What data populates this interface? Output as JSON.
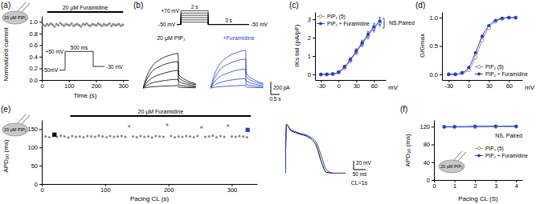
{
  "chart_data": [
    {
      "panel_label": "(a)",
      "type": "scatter",
      "cell_label": "20 µM PIP₂",
      "treatment": {
        "label": "20 µM Furamidine",
        "start": 20,
        "end": 300
      },
      "x_label": "Time (s)",
      "y_label": "Normalized current",
      "x": [
        5,
        12,
        19,
        26,
        33,
        40,
        47,
        54,
        61,
        68,
        75,
        82,
        89,
        96,
        103,
        110,
        117,
        124,
        131,
        138,
        145,
        152,
        159,
        166,
        173,
        180,
        187,
        194,
        201,
        208,
        215,
        222,
        229,
        236,
        243,
        250,
        257,
        264,
        271,
        278,
        285,
        292,
        299
      ],
      "values": [
        0.95,
        0.93,
        0.96,
        0.94,
        0.97,
        0.95,
        0.92,
        0.96,
        0.94,
        0.98,
        0.95,
        0.93,
        0.96,
        0.95,
        0.94,
        0.97,
        0.93,
        0.95,
        0.96,
        0.94,
        0.92,
        0.96,
        0.95,
        0.97,
        0.94,
        0.93,
        0.96,
        0.95,
        0.94,
        0.97,
        0.95,
        0.93,
        0.96,
        0.94,
        0.95,
        0.97,
        0.93,
        0.96,
        0.94,
        0.95,
        0.96,
        0.93,
        0.95
      ],
      "color": "#8c8c8c",
      "marker": "circle",
      "xlim": [
        0,
        320
      ],
      "ylim": [
        0,
        1.1
      ],
      "xticks": [
        0,
        100,
        200,
        300
      ],
      "yticks": [
        {
          "value": 0,
          "label": "0.0"
        },
        0.2,
        0.4,
        0.6,
        0.8,
        {
          "value": 1,
          "label": "1.0"
        }
      ],
      "protocol": {
        "x": [
          0,
          100,
          100,
          600,
          600,
          800
        ],
        "values": [
          -50,
          -50,
          50,
          50,
          -30,
          -30
        ],
        "xlim": [
          0,
          800
        ],
        "ylim": [
          -60,
          60
        ],
        "labels": [
          "+50 mV",
          "500 ms",
          "-50mV",
          "-30 mV"
        ]
      }
    },
    {
      "panel_label": "(b)",
      "type": "traces",
      "tick_labels": false,
      "protocol": {
        "x": [
          0,
          0.3,
          2.3,
          5.3
        ],
        "holding": -50,
        "steps": [
          70,
          50,
          30,
          10,
          -10,
          -30
        ],
        "xlim": [
          0,
          5.3
        ],
        "ylim": [
          -60,
          80
        ],
        "labels": [
          "+70 mV",
          "-50 mV",
          "-50 mV",
          "2 s",
          "3 s"
        ]
      },
      "x": [
        0,
        0.2,
        0.5,
        1,
        1.5,
        2,
        2.02,
        2.5,
        3
      ],
      "xlim": [
        0,
        3.2
      ],
      "ylim": [
        -100,
        700
      ],
      "groups": [
        {
          "name": "20 µM PIP₂",
          "color": "#000000",
          "series": [
            {
              "values": [
                0,
                180,
                340,
                460,
                520,
                550,
                220,
                120,
                70
              ]
            },
            {
              "values": [
                0,
                130,
                260,
                350,
                400,
                420,
                170,
                90,
                55
              ]
            },
            {
              "values": [
                0,
                80,
                160,
                220,
                260,
                280,
                110,
                60,
                35
              ]
            },
            {
              "values": [
                0,
                40,
                80,
                110,
                130,
                140,
                55,
                30,
                18
              ]
            },
            {
              "values": [
                0,
                10,
                20,
                30,
                35,
                40,
                15,
                8,
                5
              ]
            }
          ]
        },
        {
          "name": "+Furamidine",
          "color": "#1f3fd1",
          "series": [
            {
              "values": [
                0,
                200,
                370,
                500,
                565,
                600,
                240,
                130,
                75
              ]
            },
            {
              "values": [
                0,
                140,
                280,
                380,
                435,
                460,
                185,
                100,
                60
              ]
            },
            {
              "values": [
                0,
                90,
                175,
                240,
                285,
                300,
                120,
                65,
                38
              ]
            },
            {
              "values": [
                0,
                45,
                85,
                120,
                140,
                150,
                60,
                32,
                20
              ]
            },
            {
              "values": [
                0,
                12,
                22,
                32,
                38,
                45,
                17,
                9,
                5
              ]
            }
          ]
        }
      ],
      "scale_bar": {
        "x": 0.5,
        "x_label": "0.5 s",
        "y": 200,
        "y_label": "200 pA"
      }
    },
    {
      "panel_label": "(c)",
      "type": "line",
      "x_label": "mV",
      "y_label": "IKs tail (pA/pF)",
      "x": [
        -30,
        -20,
        -10,
        0,
        10,
        20,
        30,
        40,
        50,
        60,
        70
      ],
      "xlim": [
        -40,
        80
      ],
      "ylim": [
        -0.3,
        3.4
      ],
      "xticks": [
        -30,
        0,
        30,
        60
      ],
      "yticks": [
        0,
        1,
        2,
        3
      ],
      "legend": "top-left",
      "annotation": "NS,Paired",
      "series": [
        {
          "name": "PIP₂ (5)",
          "color": "#8c8c8c",
          "marker": "open-circle",
          "line_style": "solid",
          "values": [
            0,
            0,
            0.02,
            0.1,
            0.35,
            0.75,
            1.2,
            1.65,
            2.1,
            2.5,
            2.8
          ],
          "errors": [
            0.02,
            0.02,
            0.03,
            0.05,
            0.08,
            0.1,
            0.13,
            0.15,
            0.18,
            0.2,
            0.22
          ]
        },
        {
          "name": "PIP₂ + Furamidine",
          "color": "#1f3fd1",
          "marker": "circle",
          "line_style": "solid",
          "values": [
            0,
            0.01,
            0.03,
            0.13,
            0.42,
            0.82,
            1.28,
            1.72,
            2.18,
            2.58,
            2.9
          ],
          "errors": [
            0.02,
            0.02,
            0.03,
            0.05,
            0.08,
            0.1,
            0.12,
            0.15,
            0.17,
            0.2,
            0.22
          ]
        }
      ]
    },
    {
      "panel_label": "(d)",
      "type": "line",
      "x_label": "mV",
      "y_label": "G/Gmax",
      "x": [
        -30,
        -20,
        -10,
        0,
        10,
        20,
        30,
        40,
        50,
        60,
        70
      ],
      "xlim": [
        -40,
        80
      ],
      "ylim": [
        -0.1,
        1.1
      ],
      "xticks": [
        -30,
        0,
        30,
        60
      ],
      "yticks": [
        {
          "value": 0,
          "label": "0.0"
        },
        0.5,
        {
          "value": 1,
          "label": "1.0"
        }
      ],
      "legend": "bottom-right",
      "series": [
        {
          "name": "PIP₂ (5)",
          "color": "#8c8c8c",
          "marker": "open-circle",
          "line_style": "solid",
          "values": [
            0,
            0,
            0.02,
            0.08,
            0.3,
            0.6,
            0.82,
            0.93,
            0.98,
            1,
            1
          ]
        },
        {
          "name": "PIP₂ + Furamidine",
          "color": "#1f3fd1",
          "marker": "circle",
          "line_style": "solid",
          "values": [
            0,
            0,
            0.03,
            0.12,
            0.38,
            0.67,
            0.86,
            0.95,
            0.99,
            1,
            1
          ]
        }
      ]
    },
    {
      "panel_label": "(e)",
      "type": "scatter",
      "cell_label": "20 µM PIP₂",
      "treatment": {
        "label": "20 µM Furamidine",
        "start": 45,
        "end": 330
      },
      "x_label": "Pacing CL (s)",
      "y_label": "APD₉₀ (ms)",
      "x": [
        6,
        12,
        18,
        24,
        30,
        36,
        42,
        48,
        54,
        60,
        66,
        72,
        78,
        84,
        90,
        96,
        102,
        108,
        114,
        120,
        126,
        132,
        138,
        144,
        150,
        156,
        162,
        168,
        174,
        180,
        186,
        192,
        198,
        204,
        210,
        216,
        222,
        228,
        234,
        240,
        246,
        252,
        258,
        264,
        270,
        276,
        282,
        288,
        294,
        300,
        306,
        312,
        318,
        324
      ],
      "values": [
        130,
        128,
        131,
        129,
        132,
        130,
        127,
        131,
        129,
        130,
        128,
        131,
        130,
        129,
        132,
        130,
        128,
        131,
        129,
        130,
        131,
        129,
        158,
        130,
        128,
        131,
        129,
        130,
        127,
        131,
        130,
        129,
        162,
        131,
        128,
        130,
        129,
        131,
        130,
        128,
        131,
        155,
        129,
        130,
        132,
        128,
        131,
        129,
        160,
        130,
        129,
        131,
        130,
        128
      ],
      "color": "#8c8c8c",
      "marker": "circle",
      "xlim": [
        0,
        340
      ],
      "ylim": [
        0,
        175
      ],
      "xticks": [
        0,
        100,
        200,
        300
      ],
      "yticks": [
        0,
        50,
        100,
        150
      ],
      "highlights": [
        {
          "x": 20,
          "value": 135,
          "color": "#000000",
          "marker": "square"
        },
        {
          "x": 325,
          "value": 148,
          "color": "#1f3fd1",
          "marker": "square"
        }
      ],
      "traces": {
        "x": [
          0,
          5,
          20,
          50,
          100,
          130,
          150,
          170,
          200,
          250
        ],
        "xlim": [
          0,
          250
        ],
        "ylim": [
          -90,
          40
        ],
        "series": [
          {
            "color": "#000000",
            "values": [
              -80,
              30,
              18,
              10,
              0,
              -20,
              -55,
              -78,
              -80,
              -80
            ]
          },
          {
            "color": "#1f3fd1",
            "values": [
              -80,
              30,
              20,
              12,
              3,
              -12,
              -42,
              -72,
              -80,
              -80
            ]
          }
        ],
        "scale_bar": {
          "x": 50,
          "x_label": "50 ms",
          "y": 20,
          "y_label": "20 mV"
        },
        "annotation": "CL=1s"
      }
    },
    {
      "panel_label": "(f)",
      "type": "line",
      "cell_label": "20 µM PIP₂",
      "x_label": "Pacing CL (S)",
      "y_label": "APD₉₀ (ms)",
      "x": [
        0.5,
        1,
        2,
        3,
        4
      ],
      "xlim": [
        0,
        4.3
      ],
      "ylim": [
        0,
        135
      ],
      "xticks": [
        0,
        1,
        2,
        3,
        4
      ],
      "yticks": [
        0,
        40,
        80,
        120
      ],
      "legend": "right",
      "annotation": "NS, Paired",
      "series": [
        {
          "name": "PIP₂ (5)",
          "color": "#8c8c8c",
          "marker": "open-circle",
          "line_style": "solid",
          "values": [
            119,
            119,
            119,
            120,
            120
          ],
          "errors": [
            2,
            2,
            2,
            2,
            2
          ]
        },
        {
          "name": "PIP₂ + Furamidine",
          "color": "#1f3fd1",
          "marker": "circle",
          "line_style": "solid",
          "values": [
            120,
            120,
            121,
            121,
            121
          ],
          "errors": [
            2,
            2,
            2,
            2,
            2
          ]
        }
      ]
    }
  ]
}
